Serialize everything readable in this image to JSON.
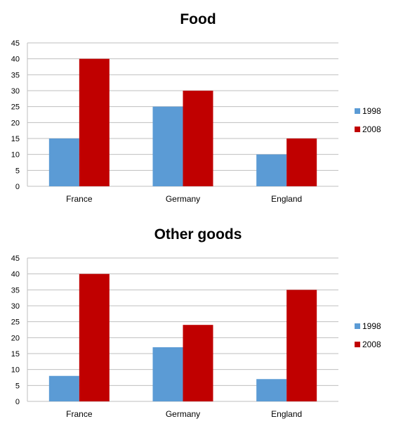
{
  "colors": {
    "series_1998": "#5B9BD5",
    "series_2008": "#C00000",
    "grid": "#BFBFBF"
  },
  "chart_data": [
    {
      "type": "bar",
      "title": "Food",
      "categories": [
        "France",
        "Germany",
        "England"
      ],
      "series": [
        {
          "name": "1998",
          "values": [
            15,
            25,
            10
          ]
        },
        {
          "name": "2008",
          "values": [
            40,
            30,
            15
          ]
        }
      ],
      "ylim": [
        0,
        45
      ],
      "yticks": [
        0,
        5,
        10,
        15,
        20,
        25,
        30,
        35,
        40,
        45
      ],
      "grid": true,
      "legend": "right"
    },
    {
      "type": "bar",
      "title": "Other goods",
      "categories": [
        "France",
        "Germany",
        "England"
      ],
      "series": [
        {
          "name": "1998",
          "values": [
            8,
            17,
            7
          ]
        },
        {
          "name": "2008",
          "values": [
            40,
            24,
            35
          ]
        }
      ],
      "ylim": [
        0,
        45
      ],
      "yticks": [
        0,
        5,
        10,
        15,
        20,
        25,
        30,
        35,
        40,
        45
      ],
      "grid": true,
      "legend": "right"
    }
  ]
}
